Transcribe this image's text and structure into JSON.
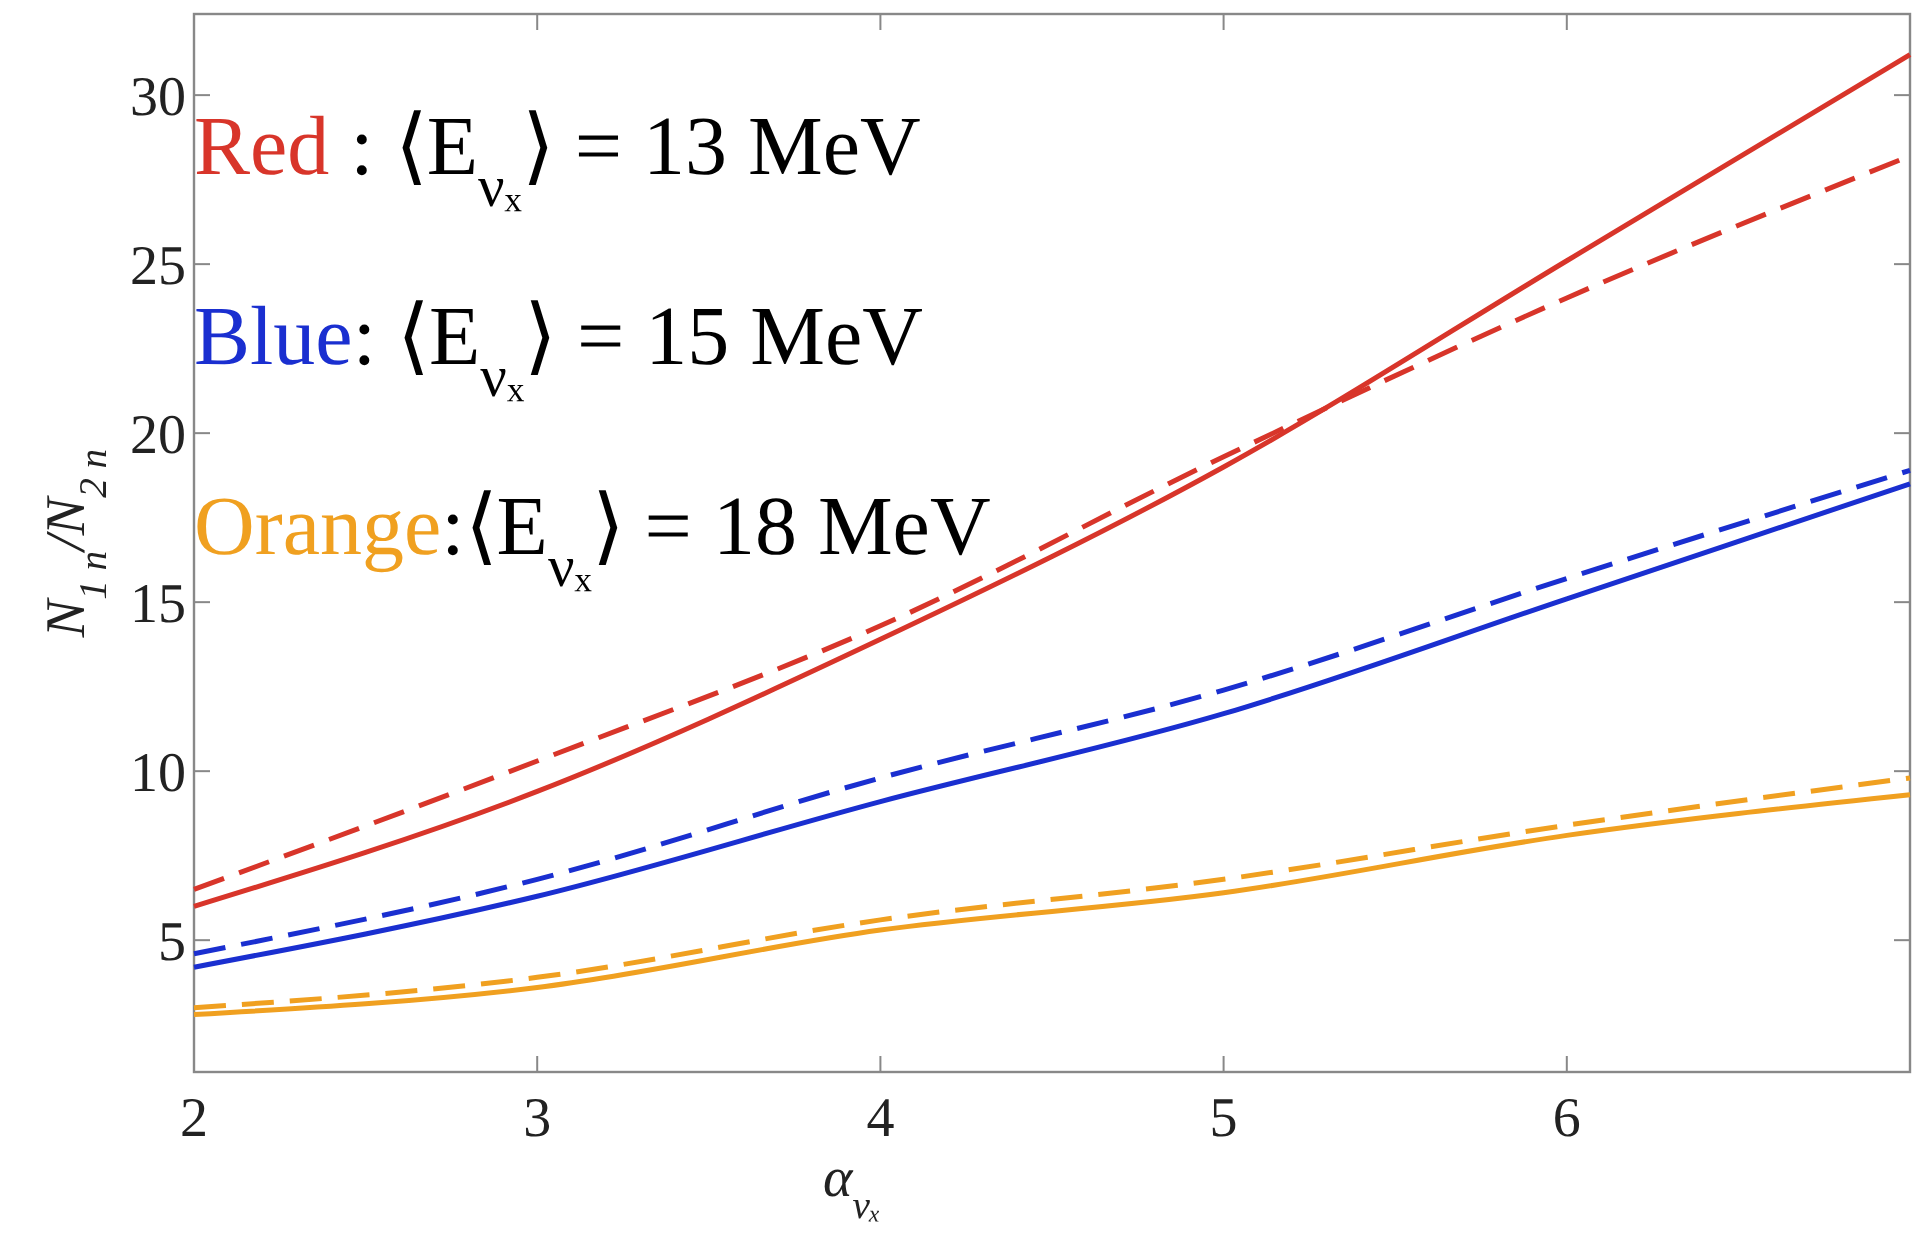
{
  "chart_data": {
    "type": "line",
    "xlabel": "α$_{νₓ}$",
    "ylabel": "N$_{1 n}$/N$_{2 n}$",
    "x": [
      2,
      3,
      4,
      5,
      6,
      7
    ],
    "series": [
      {
        "color": "#d8352a",
        "line_style": "solid",
        "values": [
          6.0,
          9.4,
          13.9,
          19.0,
          25.1,
          31.2
        ]
      },
      {
        "color": "#d8352a",
        "line_style": "dashed",
        "values": [
          6.5,
          10.3,
          14.3,
          19.3,
          24.0,
          28.2
        ]
      },
      {
        "color": "#1a2fd0",
        "line_style": "solid",
        "values": [
          4.2,
          6.3,
          9.1,
          11.7,
          15.1,
          18.5
        ]
      },
      {
        "color": "#1a2fd0",
        "line_style": "dashed",
        "values": [
          4.6,
          6.8,
          9.8,
          12.4,
          15.7,
          18.9
        ]
      },
      {
        "color": "#f0a020",
        "line_style": "solid",
        "values": [
          2.8,
          3.6,
          5.3,
          6.4,
          8.1,
          9.3
        ]
      },
      {
        "color": "#f0a020",
        "line_style": "dashed",
        "values": [
          3.0,
          3.9,
          5.6,
          6.8,
          8.4,
          9.8
        ]
      }
    ],
    "xlim": [
      2,
      7
    ],
    "ylim": [
      1.1,
      32.4
    ],
    "xticks": [
      2,
      3,
      4,
      5,
      6
    ],
    "yticks": [
      5,
      10,
      15,
      20,
      25,
      30
    ],
    "grid": false,
    "annotations": [
      "Red : ⟨E$_{νₓ}$⟩ = 13 MeV",
      "Blue: ⟨E$_{νₓ}$⟩ = 15 MeV",
      "Orange:⟨E$_{νₓ}$⟩ = 18 MeV"
    ]
  }
}
